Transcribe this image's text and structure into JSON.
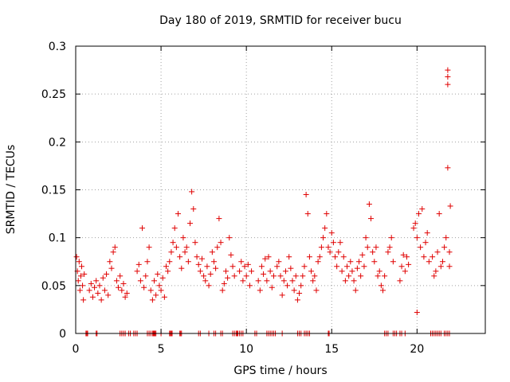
{
  "chart_data": {
    "type": "scatter",
    "title": "Day 180 of 2019, SRMTID for receiver bucu",
    "xlabel": "GPS time / hours",
    "ylabel": "SRMTID / TECUs",
    "xlim": [
      0,
      24
    ],
    "ylim": [
      0,
      0.3
    ],
    "x_ticks": [
      0,
      5,
      10,
      15,
      20
    ],
    "x_tick_labels": [
      "0",
      "5",
      "10",
      "15",
      "20"
    ],
    "y_ticks": [
      0,
      0.05,
      0.1,
      0.15,
      0.2,
      0.25,
      0.3
    ],
    "y_tick_labels": [
      "0",
      "0.05",
      "0.1",
      "0.15",
      "0.2",
      "0.25",
      "0.3"
    ],
    "grid": true,
    "marker": "+",
    "marker_color": "#e00000",
    "series": [
      {
        "name": "SRMTID",
        "points": [
          [
            0.05,
            0.08
          ],
          [
            0.1,
            0.065
          ],
          [
            0.15,
            0.055
          ],
          [
            0.2,
            0.075
          ],
          [
            0.25,
            0.045
          ],
          [
            0.3,
            0.06
          ],
          [
            0.35,
            0.07
          ],
          [
            0.4,
            0.05
          ],
          [
            0.45,
            0.035
          ],
          [
            0.5,
            0.062
          ],
          [
            0.8,
            0.045
          ],
          [
            0.9,
            0.052
          ],
          [
            1.0,
            0.038
          ],
          [
            1.1,
            0.048
          ],
          [
            1.2,
            0.055
          ],
          [
            1.3,
            0.042
          ],
          [
            1.4,
            0.05
          ],
          [
            1.5,
            0.035
          ],
          [
            1.6,
            0.058
          ],
          [
            1.7,
            0.045
          ],
          [
            1.8,
            0.062
          ],
          [
            1.9,
            0.04
          ],
          [
            2.0,
            0.075
          ],
          [
            2.1,
            0.068
          ],
          [
            2.2,
            0.085
          ],
          [
            2.3,
            0.09
          ],
          [
            2.4,
            0.055
          ],
          [
            2.5,
            0.048
          ],
          [
            2.6,
            0.06
          ],
          [
            2.7,
            0.045
          ],
          [
            2.8,
            0.052
          ],
          [
            2.9,
            0.038
          ],
          [
            3.0,
            0.042
          ],
          [
            3.6,
            0.065
          ],
          [
            3.7,
            0.072
          ],
          [
            3.8,
            0.055
          ],
          [
            3.9,
            0.11
          ],
          [
            4.0,
            0.048
          ],
          [
            4.1,
            0.06
          ],
          [
            4.2,
            0.075
          ],
          [
            4.3,
            0.09
          ],
          [
            4.4,
            0.045
          ],
          [
            4.5,
            0.035
          ],
          [
            4.6,
            0.055
          ],
          [
            4.7,
            0.04
          ],
          [
            4.8,
            0.062
          ],
          [
            4.9,
            0.05
          ],
          [
            5.0,
            0.045
          ],
          [
            5.1,
            0.058
          ],
          [
            5.2,
            0.038
          ],
          [
            5.3,
            0.07
          ],
          [
            5.4,
            0.065
          ],
          [
            5.5,
            0.075
          ],
          [
            5.6,
            0.085
          ],
          [
            5.7,
            0.095
          ],
          [
            5.8,
            0.11
          ],
          [
            5.9,
            0.09
          ],
          [
            6.0,
            0.125
          ],
          [
            6.1,
            0.08
          ],
          [
            6.2,
            0.068
          ],
          [
            6.3,
            0.1
          ],
          [
            6.4,
            0.085
          ],
          [
            6.5,
            0.09
          ],
          [
            6.6,
            0.075
          ],
          [
            6.7,
            0.115
          ],
          [
            6.8,
            0.148
          ],
          [
            6.9,
            0.13
          ],
          [
            7.0,
            0.095
          ],
          [
            7.1,
            0.08
          ],
          [
            7.2,
            0.072
          ],
          [
            7.3,
            0.065
          ],
          [
            7.4,
            0.078
          ],
          [
            7.5,
            0.06
          ],
          [
            7.6,
            0.055
          ],
          [
            7.7,
            0.07
          ],
          [
            7.8,
            0.05
          ],
          [
            7.9,
            0.062
          ],
          [
            8.0,
            0.085
          ],
          [
            8.1,
            0.075
          ],
          [
            8.2,
            0.068
          ],
          [
            8.3,
            0.09
          ],
          [
            8.4,
            0.12
          ],
          [
            8.5,
            0.095
          ],
          [
            8.6,
            0.045
          ],
          [
            8.7,
            0.052
          ],
          [
            8.8,
            0.065
          ],
          [
            8.9,
            0.058
          ],
          [
            9.0,
            0.1
          ],
          [
            9.1,
            0.082
          ],
          [
            9.2,
            0.07
          ],
          [
            9.3,
            0.06
          ],
          [
            9.6,
            0.065
          ],
          [
            9.7,
            0.075
          ],
          [
            9.8,
            0.055
          ],
          [
            9.9,
            0.07
          ],
          [
            10.0,
            0.06
          ],
          [
            10.1,
            0.072
          ],
          [
            10.2,
            0.05
          ],
          [
            10.3,
            0.065
          ],
          [
            10.7,
            0.055
          ],
          [
            10.8,
            0.045
          ],
          [
            10.9,
            0.07
          ],
          [
            11.0,
            0.062
          ],
          [
            11.1,
            0.078
          ],
          [
            11.2,
            0.055
          ],
          [
            11.3,
            0.08
          ],
          [
            11.4,
            0.065
          ],
          [
            11.5,
            0.048
          ],
          [
            11.6,
            0.06
          ],
          [
            11.8,
            0.07
          ],
          [
            11.9,
            0.075
          ],
          [
            12.0,
            0.06
          ],
          [
            12.1,
            0.04
          ],
          [
            12.2,
            0.055
          ],
          [
            12.3,
            0.065
          ],
          [
            12.4,
            0.05
          ],
          [
            12.5,
            0.08
          ],
          [
            12.6,
            0.068
          ],
          [
            12.7,
            0.055
          ],
          [
            12.8,
            0.045
          ],
          [
            12.9,
            0.06
          ],
          [
            13.0,
            0.035
          ],
          [
            13.1,
            0.042
          ],
          [
            13.2,
            0.05
          ],
          [
            13.3,
            0.06
          ],
          [
            13.4,
            0.07
          ],
          [
            13.5,
            0.145
          ],
          [
            13.6,
            0.125
          ],
          [
            13.7,
            0.08
          ],
          [
            13.8,
            0.065
          ],
          [
            13.9,
            0.055
          ],
          [
            14.0,
            0.06
          ],
          [
            14.1,
            0.045
          ],
          [
            14.2,
            0.075
          ],
          [
            14.3,
            0.08
          ],
          [
            14.4,
            0.09
          ],
          [
            14.5,
            0.1
          ],
          [
            14.6,
            0.11
          ],
          [
            14.7,
            0.125
          ],
          [
            14.8,
            0.09
          ],
          [
            14.9,
            0.085
          ],
          [
            15.0,
            0.105
          ],
          [
            15.1,
            0.095
          ],
          [
            15.2,
            0.08
          ],
          [
            15.3,
            0.07
          ],
          [
            15.4,
            0.085
          ],
          [
            15.5,
            0.095
          ],
          [
            15.6,
            0.065
          ],
          [
            15.7,
            0.08
          ],
          [
            15.8,
            0.055
          ],
          [
            15.9,
            0.07
          ],
          [
            16.0,
            0.06
          ],
          [
            16.1,
            0.075
          ],
          [
            16.2,
            0.065
          ],
          [
            16.3,
            0.055
          ],
          [
            16.4,
            0.045
          ],
          [
            16.5,
            0.068
          ],
          [
            16.6,
            0.075
          ],
          [
            16.7,
            0.06
          ],
          [
            16.8,
            0.082
          ],
          [
            16.9,
            0.07
          ],
          [
            17.0,
            0.1
          ],
          [
            17.1,
            0.09
          ],
          [
            17.2,
            0.135
          ],
          [
            17.3,
            0.12
          ],
          [
            17.4,
            0.085
          ],
          [
            17.5,
            0.075
          ],
          [
            17.6,
            0.09
          ],
          [
            17.7,
            0.06
          ],
          [
            17.8,
            0.065
          ],
          [
            17.9,
            0.05
          ],
          [
            18.0,
            0.045
          ],
          [
            18.1,
            0.06
          ],
          [
            18.3,
            0.085
          ],
          [
            18.4,
            0.09
          ],
          [
            18.5,
            0.1
          ],
          [
            18.6,
            0.075
          ],
          [
            19.0,
            0.055
          ],
          [
            19.1,
            0.07
          ],
          [
            19.2,
            0.082
          ],
          [
            19.3,
            0.065
          ],
          [
            19.4,
            0.08
          ],
          [
            19.5,
            0.072
          ],
          [
            19.8,
            0.11
          ],
          [
            19.9,
            0.115
          ],
          [
            20.0,
            0.1
          ],
          [
            20.1,
            0.125
          ],
          [
            20.2,
            0.09
          ],
          [
            20.3,
            0.13
          ],
          [
            20.4,
            0.08
          ],
          [
            20.5,
            0.095
          ],
          [
            20.6,
            0.105
          ],
          [
            20.7,
            0.075
          ],
          [
            20.0,
            0.022
          ],
          [
            20.9,
            0.08
          ],
          [
            21.0,
            0.06
          ],
          [
            21.1,
            0.065
          ],
          [
            21.2,
            0.085
          ],
          [
            21.3,
            0.125
          ],
          [
            21.4,
            0.07
          ],
          [
            21.5,
            0.075
          ],
          [
            21.6,
            0.09
          ],
          [
            21.7,
            0.1
          ],
          [
            21.8,
            0.275
          ],
          [
            21.8,
            0.268
          ],
          [
            21.8,
            0.26
          ],
          [
            21.8,
            0.173
          ],
          [
            21.9,
            0.085
          ],
          [
            21.9,
            0.07
          ],
          [
            21.95,
            0.133
          ]
        ],
        "zero_points": [
          0.6,
          0.65,
          0.7,
          1.2,
          1.25,
          2.6,
          2.7,
          2.8,
          2.9,
          3.1,
          3.2,
          3.4,
          3.5,
          3.6,
          4.2,
          4.3,
          4.4,
          4.5,
          4.55,
          4.6,
          4.65,
          4.7,
          5.0,
          5.5,
          5.55,
          5.6,
          5.65,
          6.1,
          6.15,
          6.2,
          7.2,
          7.3,
          7.8,
          8.1,
          8.2,
          8.5,
          8.6,
          9.2,
          9.3,
          9.4,
          9.45,
          9.5,
          9.6,
          9.7,
          9.8,
          10.5,
          10.6,
          11.2,
          11.3,
          11.4,
          11.5,
          11.6,
          11.7,
          12.1,
          13.0,
          13.1,
          13.2,
          13.4,
          13.5,
          13.6,
          13.7,
          14.8,
          14.85,
          18.1,
          18.2,
          18.3,
          18.6,
          18.7,
          18.8,
          19.0,
          19.1,
          19.3,
          20.8,
          20.9,
          21.0,
          21.1,
          21.2,
          21.3,
          21.4,
          21.6,
          21.7,
          21.8,
          21.9
        ]
      }
    ]
  }
}
